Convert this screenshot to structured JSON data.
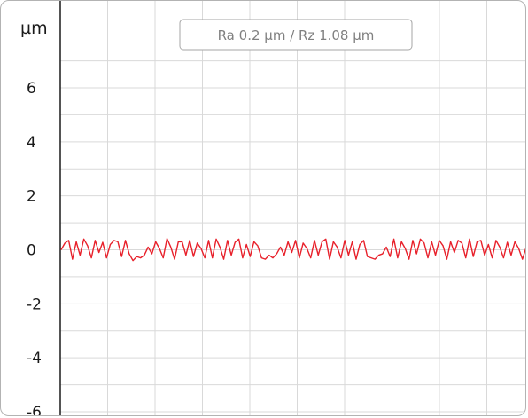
{
  "chart_data": {
    "type": "line",
    "unit_label": "µm",
    "annotation": "Ra 0.2 µm / Rz 1.08 µm",
    "ylim": [
      -6,
      7.4
    ],
    "y_ticks": [
      -6,
      -4,
      -2,
      0,
      2,
      4,
      6
    ],
    "y_tick_labels": [
      "-6",
      "-4",
      "-2",
      "0",
      "2",
      "4",
      "6"
    ],
    "grid": true,
    "series": [
      {
        "color": "#e8202a",
        "y": [
          0.0,
          0.25,
          0.35,
          -0.35,
          0.3,
          -0.2,
          0.4,
          0.15,
          -0.3,
          0.35,
          -0.1,
          0.28,
          -0.3,
          0.2,
          0.35,
          0.3,
          -0.25,
          0.35,
          -0.15,
          -0.4,
          -0.25,
          -0.3,
          -0.2,
          0.1,
          -0.15,
          0.3,
          0.05,
          -0.3,
          0.42,
          0.1,
          -0.35,
          0.3,
          0.3,
          -0.2,
          0.35,
          -0.25,
          0.25,
          0.05,
          -0.3,
          0.35,
          -0.3,
          0.4,
          0.1,
          -0.35,
          0.35,
          -0.2,
          0.28,
          0.4,
          -0.3,
          0.2,
          -0.25,
          0.3,
          0.15,
          -0.3,
          -0.35,
          -0.2,
          -0.3,
          -0.15,
          0.1,
          -0.2,
          0.3,
          -0.1,
          0.35,
          -0.3,
          0.25,
          0.05,
          -0.3,
          0.35,
          -0.2,
          0.3,
          0.4,
          -0.35,
          0.3,
          0.1,
          -0.3,
          0.35,
          -0.2,
          0.3,
          -0.35,
          0.2,
          0.35,
          -0.25,
          -0.3,
          -0.35,
          -0.2,
          -0.15,
          0.1,
          -0.25,
          0.4,
          -0.3,
          0.3,
          0.05,
          -0.35,
          0.35,
          -0.15,
          0.4,
          0.25,
          -0.3,
          0.3,
          -0.2,
          0.35,
          0.15,
          -0.35,
          0.3,
          -0.1,
          0.35,
          0.25,
          -0.3,
          0.4,
          -0.25,
          0.3,
          0.35,
          -0.2,
          0.2,
          -0.3,
          0.35,
          0.1,
          -0.3,
          0.28,
          -0.2,
          0.3,
          0.05,
          -0.35,
          0.1
        ]
      }
    ]
  }
}
